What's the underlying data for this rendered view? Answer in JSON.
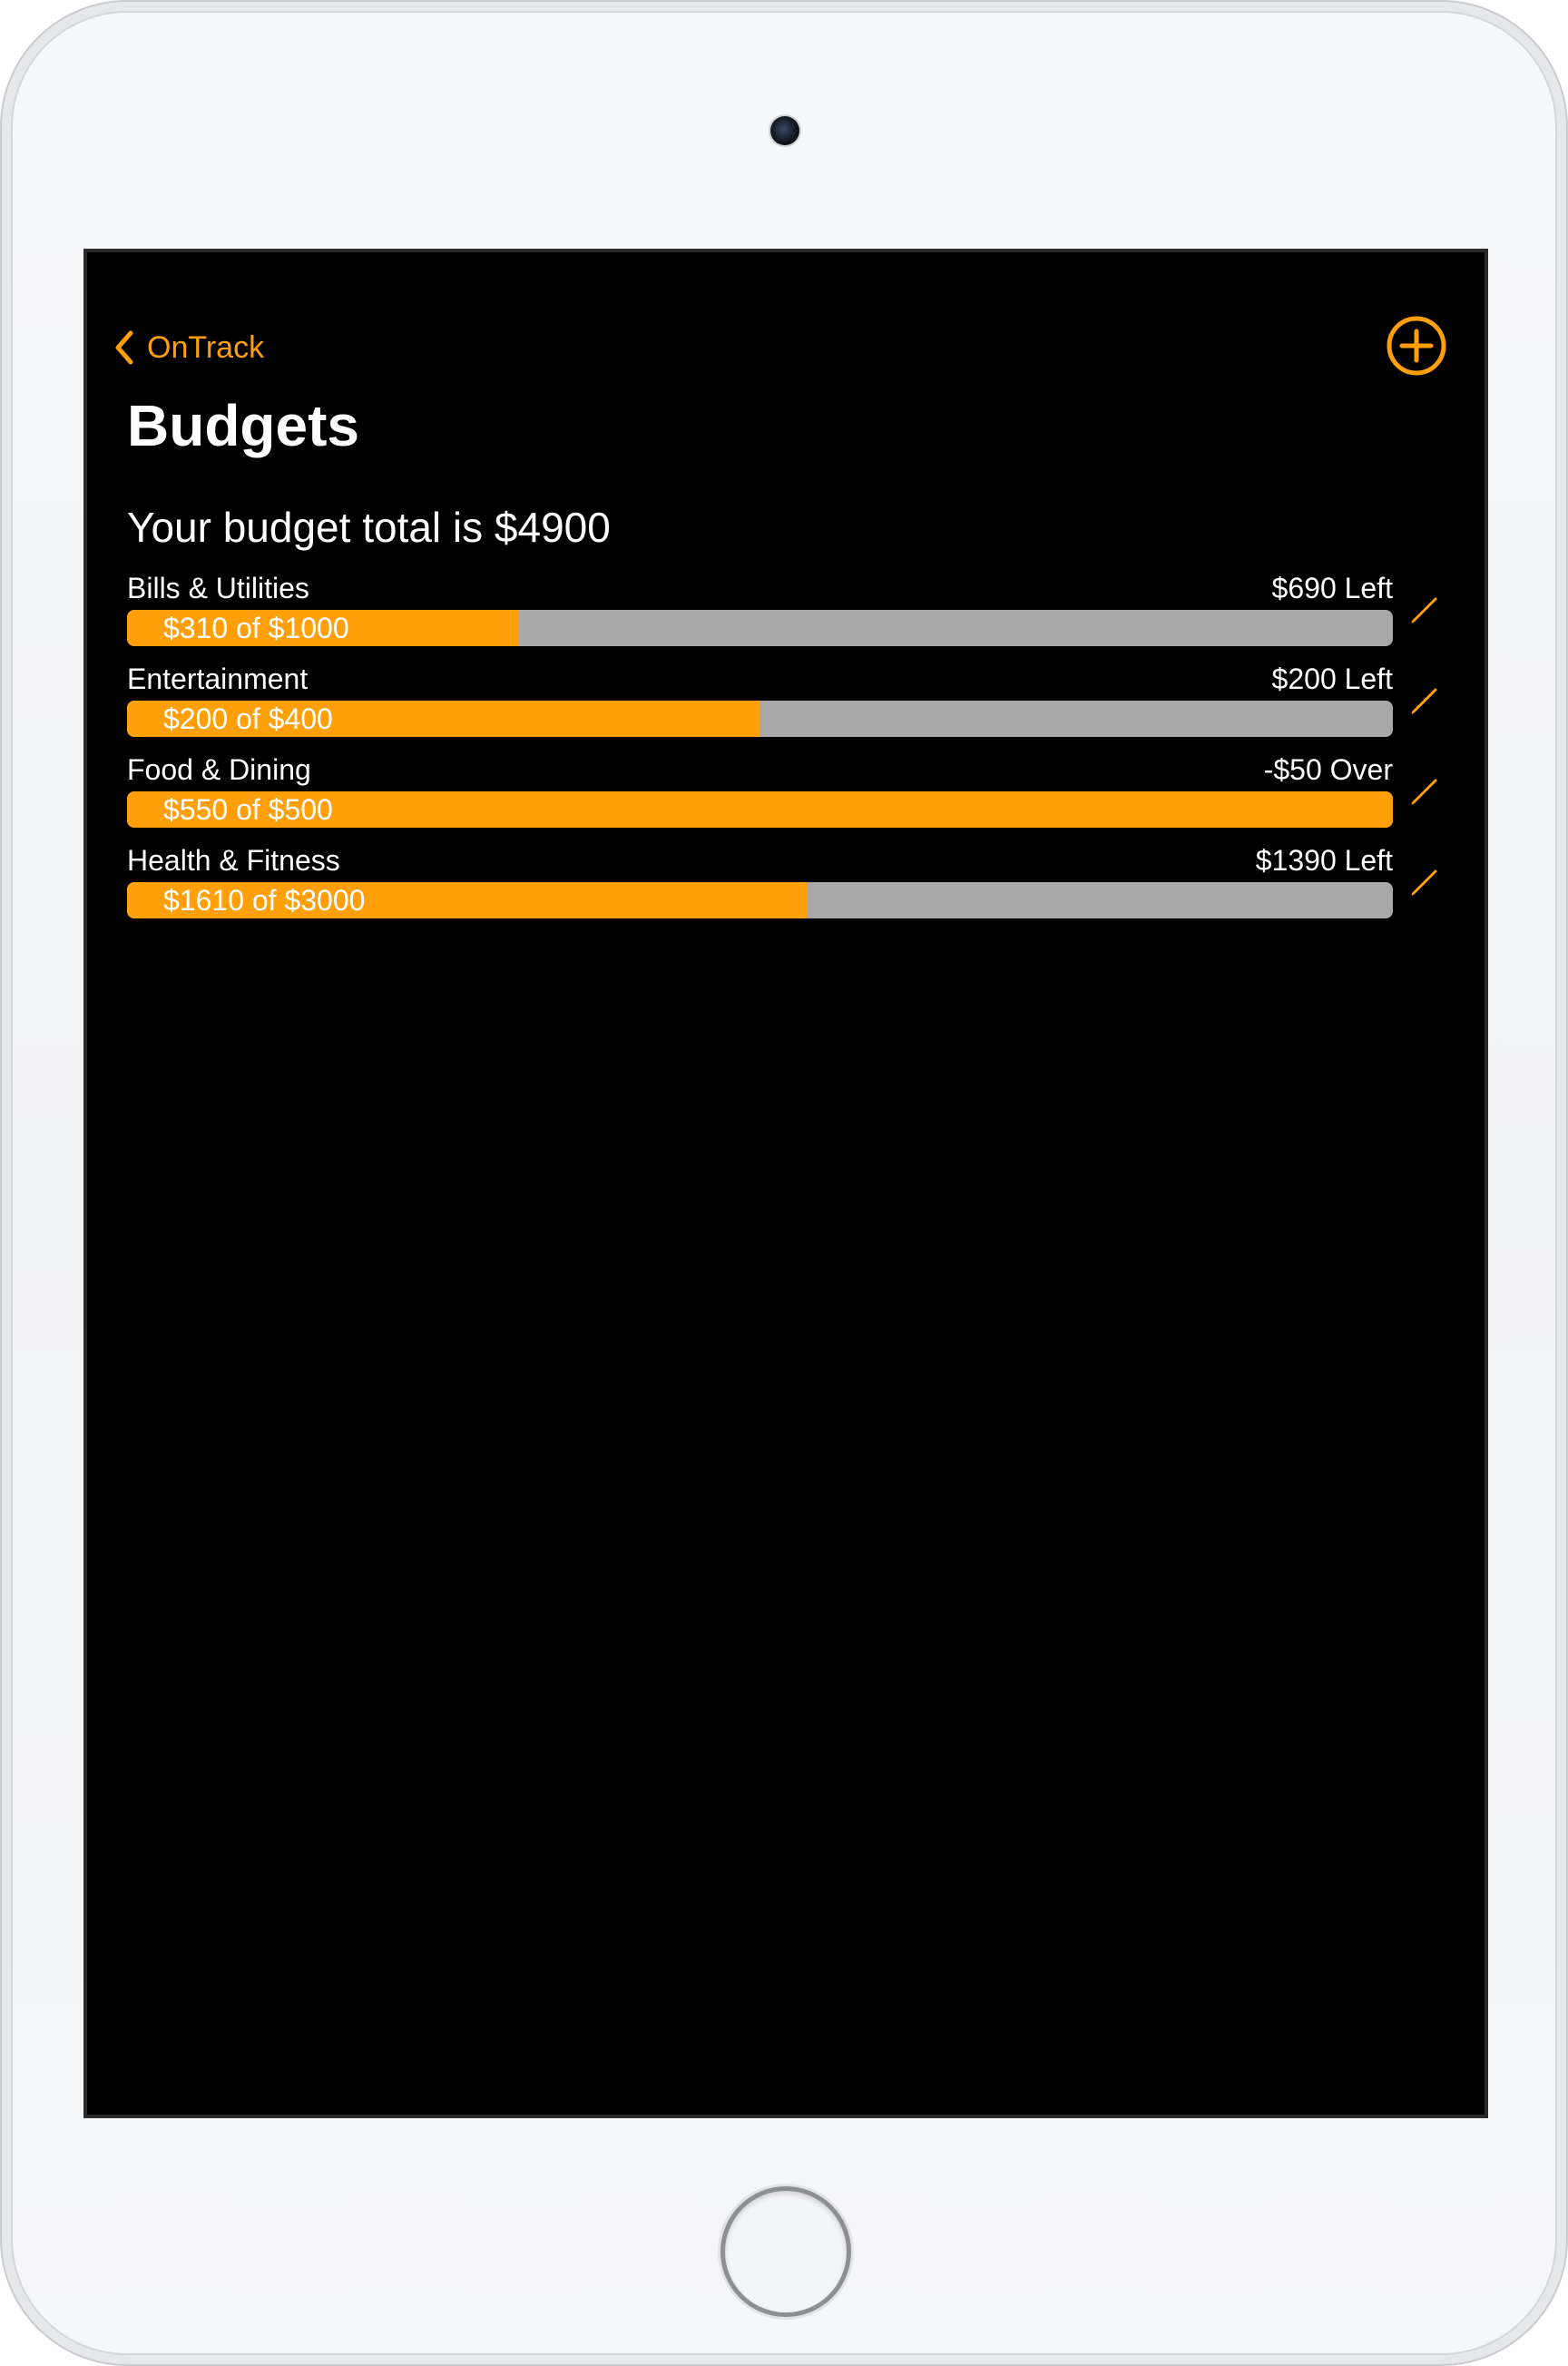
{
  "nav": {
    "back_label": "OnTrack",
    "back_icon": "chevron-left-icon",
    "add_icon": "plus-circle-icon"
  },
  "page": {
    "title": "Budgets",
    "total_text": "Your budget total is $4900"
  },
  "colors": {
    "accent": "#ff9f0a",
    "track": "#a8a8a8",
    "background": "#000000"
  },
  "budgets": [
    {
      "name": "Bills & Utilities",
      "remaining": "$690 Left",
      "progress_label": "$310 of $1000",
      "fraction": 0.31
    },
    {
      "name": "Entertainment",
      "remaining": "$200 Left",
      "progress_label": "$200 of $400",
      "fraction": 0.5
    },
    {
      "name": "Food & Dining",
      "remaining": "-$50 Over",
      "progress_label": "$550 of $500",
      "fraction": 1.0
    },
    {
      "name": "Health & Fitness",
      "remaining": "$1390 Left",
      "progress_label": "$1610 of $3000",
      "fraction": 0.537
    }
  ]
}
